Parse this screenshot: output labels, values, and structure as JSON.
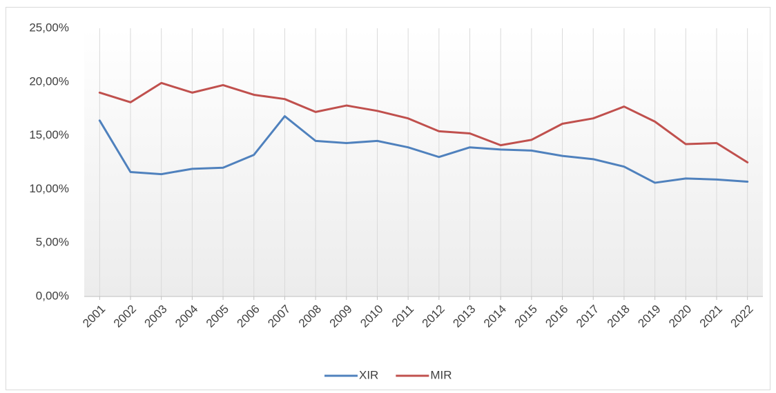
{
  "chart_data": {
    "type": "line",
    "categories": [
      "2001",
      "2002",
      "2003",
      "2004",
      "2005",
      "2006",
      "2007",
      "2008",
      "2009",
      "2010",
      "2011",
      "2012",
      "2013",
      "2014",
      "2015",
      "2016",
      "2017",
      "2018",
      "2019",
      "2020",
      "2021",
      "2022"
    ],
    "series": [
      {
        "name": "XIR",
        "color": "#4f81bd",
        "values": [
          16.4,
          11.6,
          11.4,
          11.9,
          12.0,
          13.2,
          16.8,
          14.5,
          14.3,
          14.5,
          13.9,
          13.0,
          13.9,
          13.7,
          13.6,
          13.1,
          12.8,
          12.1,
          10.6,
          11.0,
          10.9,
          10.7
        ]
      },
      {
        "name": "MIR",
        "color": "#c0504d",
        "values": [
          19.0,
          18.1,
          19.9,
          19.0,
          19.7,
          18.8,
          18.4,
          17.2,
          17.8,
          17.3,
          16.6,
          15.4,
          15.2,
          14.1,
          14.6,
          16.1,
          16.6,
          17.7,
          16.3,
          14.2,
          14.3,
          12.5
        ]
      }
    ],
    "ylim": [
      0,
      25
    ],
    "yticks": [
      {
        "value": 0,
        "label": "0,00%"
      },
      {
        "value": 5,
        "label": "5,00%"
      },
      {
        "value": 10,
        "label": "10,00%"
      },
      {
        "value": 15,
        "label": "15,00%"
      },
      {
        "value": 20,
        "label": "20,00%"
      },
      {
        "value": 25,
        "label": "25,00%"
      }
    ],
    "grid": "x",
    "legend": "bottom"
  }
}
